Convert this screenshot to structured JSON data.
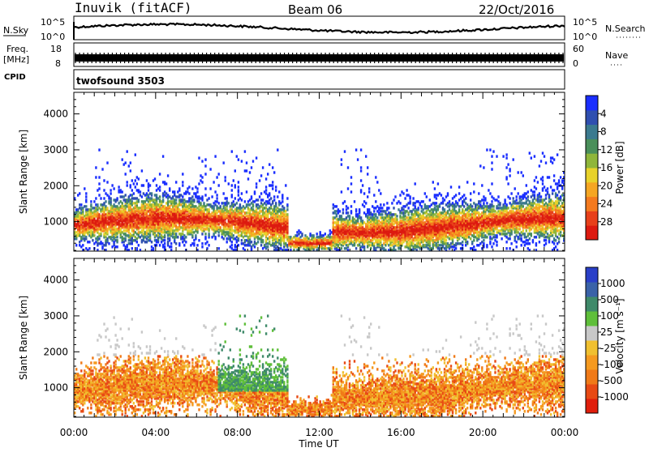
{
  "header": {
    "station": "Inuvik (fitACF)",
    "beam": "Beam 06",
    "date": "22/Oct/2016"
  },
  "strips": {
    "nsky": {
      "label": "N.Sky",
      "left_ticks": [
        "10^5",
        "10^0"
      ],
      "right_label": "N.Search",
      "right_ticks": [
        "10^5",
        "10^0"
      ]
    },
    "freq": {
      "label_line1": "Freq.",
      "label_line2": "[MHz]",
      "left_ticks": [
        "18",
        "8"
      ],
      "right_label": "Nave",
      "right_ticks": [
        "60",
        "0"
      ]
    },
    "cpid": {
      "label": "CPID",
      "value": "twofsound 3503"
    }
  },
  "chart_data": [
    {
      "type": "heatmap",
      "name": "power",
      "ylabel": "Slant Range [km]",
      "xlabel": "Time UT",
      "x_ticks": [
        "00:00",
        "04:00",
        "08:00",
        "12:00",
        "16:00",
        "20:00",
        "00:00"
      ],
      "y_ticks": [
        1000,
        2000,
        3000,
        4000
      ],
      "ylim": [
        180,
        4600
      ],
      "xlim_hours": [
        0,
        24
      ],
      "colorbar": {
        "label": "Power [dB]",
        "ticks": [
          "4",
          "8",
          "12",
          "16",
          "20",
          "24",
          "28"
        ],
        "colors": [
          "#1a2eff",
          "#2f4fb0",
          "#3b7a8f",
          "#4a8f5a",
          "#8fb63a",
          "#e8d22a",
          "#f5a623",
          "#f47a1f",
          "#e8401a",
          "#dd1a10"
        ]
      }
    },
    {
      "type": "heatmap",
      "name": "velocity",
      "ylabel": "Slant Range [km]",
      "xlabel": "Time UT",
      "x_ticks": [
        "00:00",
        "04:00",
        "08:00",
        "12:00",
        "16:00",
        "20:00",
        "00:00"
      ],
      "y_ticks": [
        1000,
        2000,
        3000,
        4000
      ],
      "ylim": [
        180,
        4600
      ],
      "xlim_hours": [
        0,
        24
      ],
      "colorbar": {
        "label": "Velocity [m s⁻¹]",
        "ticks": [
          "1000",
          "500",
          "100",
          "25",
          "-25",
          "-100",
          "-500",
          "-1000"
        ],
        "colors": [
          "#2a3fc8",
          "#3a62a8",
          "#3f8a6a",
          "#5fbf3a",
          "#c8c8c8",
          "#f0c030",
          "#f59a20",
          "#f07a18",
          "#e84a14",
          "#e01e0c"
        ]
      }
    }
  ]
}
